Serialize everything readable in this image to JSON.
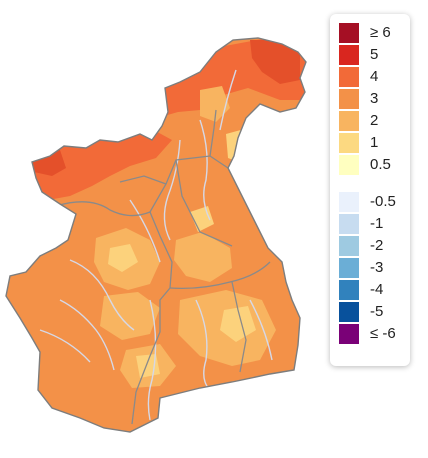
{
  "map": {
    "region_name": "",
    "fill_colors": {
      "deep_orange_red": "#e4502a",
      "red_orange": "#f26a38",
      "orange": "#f39148",
      "light_orange": "#f8b460",
      "pale_orange": "#fcd27c",
      "boundary": "#888888",
      "river": "#d6d8e6"
    }
  },
  "legend": {
    "items": [
      {
        "label": "≥ 6",
        "color": "#a50f24"
      },
      {
        "label": "5",
        "color": "#d9261f"
      },
      {
        "label": "4",
        "color": "#f26a38"
      },
      {
        "label": "3",
        "color": "#f39148"
      },
      {
        "label": "2",
        "color": "#f8b460"
      },
      {
        "label": "1",
        "color": "#fcd981"
      },
      {
        "label": "0.5",
        "color": "#ffffc0"
      },
      {
        "label": "-0.5",
        "color": "#eaf1fc"
      },
      {
        "label": "-1",
        "color": "#c7dcf0"
      },
      {
        "label": "-2",
        "color": "#9ecae1"
      },
      {
        "label": "-3",
        "color": "#6baed6"
      },
      {
        "label": "-4",
        "color": "#3182bd"
      },
      {
        "label": "-5",
        "color": "#08519c"
      },
      {
        "label": "≤ -6",
        "color": "#7a0177"
      }
    ]
  }
}
